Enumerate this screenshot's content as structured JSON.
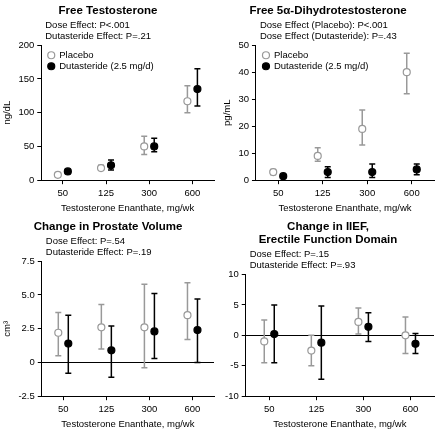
{
  "chart_data": [
    {
      "type": "scatter",
      "title": "Free Testosterone",
      "annotations": [
        "Dose Effect: P<.001",
        "Dutasteride Effect: P=.21"
      ],
      "categories": [
        "50",
        "125",
        "300",
        "600"
      ],
      "x_label": "Testosterone Enanthate, mg/wk",
      "y_label": "ng/dL",
      "ylim": [
        0,
        200
      ],
      "yticks": [
        0,
        50,
        100,
        150,
        200
      ],
      "grid": false,
      "legend": "upper left",
      "series": [
        {
          "name": "Placebo",
          "color": "#999999",
          "marker": "open",
          "values": [
            8,
            18,
            50,
            117
          ],
          "error_low": [
            5,
            15,
            38,
            100
          ],
          "error_high": [
            10,
            22,
            65,
            140
          ]
        },
        {
          "name": "Dutasteride (2.5 mg/d)",
          "color": "#000000",
          "marker": "filled",
          "values": [
            13,
            22,
            50,
            135
          ],
          "error_low": [
            10,
            15,
            42,
            110
          ],
          "error_high": [
            16,
            30,
            62,
            165
          ]
        }
      ]
    },
    {
      "type": "scatter",
      "title": "Free 5α-Dihydrotestosterone",
      "annotations": [
        "Dose Effect (Placebo): P<.001",
        "Dose Effect (Dutasteride): P=.43"
      ],
      "categories": [
        "50",
        "125",
        "300",
        "600"
      ],
      "x_label": "Testosterone Enanthate, mg/wk",
      "y_label": "pg/mL",
      "ylim": [
        0,
        50
      ],
      "yticks": [
        0,
        10,
        20,
        30,
        40,
        50
      ],
      "grid": false,
      "legend": "upper left",
      "series": [
        {
          "name": "Placebo",
          "color": "#999999",
          "marker": "open",
          "values": [
            3,
            9,
            19,
            40
          ],
          "error_low": [
            2,
            7,
            13,
            32
          ],
          "error_high": [
            4,
            12,
            26,
            47
          ]
        },
        {
          "name": "Dutasteride (2.5 mg/d)",
          "color": "#000000",
          "marker": "filled",
          "values": [
            1.5,
            3,
            3,
            4
          ],
          "error_low": [
            1,
            1,
            1,
            2
          ],
          "error_high": [
            2,
            5,
            6,
            6
          ]
        }
      ]
    },
    {
      "type": "scatter",
      "title": "Change in Prostate Volume",
      "annotations": [
        "Dose Effect: P=.54",
        "Dutasteride Effect: P=.19"
      ],
      "categories": [
        "50",
        "125",
        "300",
        "600"
      ],
      "x_label": "Testosterone Enanthate, mg/wk",
      "y_label": "cm³",
      "ylim": [
        -2.5,
        7.5
      ],
      "yticks": [
        -2.5,
        0,
        2.5,
        {
          "value": 5,
          "label": "5.0"
        },
        7.5
      ],
      "grid": false,
      "series": [
        {
          "name": "Placebo",
          "color": "#999999",
          "marker": "open",
          "values": [
            2.2,
            2.6,
            2.6,
            3.5
          ],
          "error_low": [
            0.5,
            1,
            -0.4,
            1.7
          ],
          "error_high": [
            3.7,
            4.3,
            5.8,
            5.9
          ]
        },
        {
          "name": "Dutasteride (2.5 mg/d)",
          "color": "#000000",
          "marker": "filled",
          "values": [
            1.4,
            0.9,
            2.3,
            2.4
          ],
          "error_low": [
            -0.8,
            -1.1,
            0.3,
            0
          ],
          "error_high": [
            3.5,
            2.7,
            5.1,
            4.7
          ]
        }
      ]
    },
    {
      "type": "scatter",
      "title": "Change in IIEF,\nErectile Function Domain",
      "annotations": [
        "Dose Effect: P=.15",
        "Dutasteride Effect: P=.93"
      ],
      "categories": [
        "50",
        "125",
        "300",
        "600"
      ],
      "x_label": "Testosterone Enanthate, mg/wk",
      "ylim": [
        -10,
        10
      ],
      "yticks": [
        -10,
        -5,
        0,
        5,
        10
      ],
      "grid": false,
      "series": [
        {
          "name": "Placebo",
          "color": "#999999",
          "marker": "open",
          "values": [
            -1,
            -2.5,
            2.2,
            0
          ],
          "error_low": [
            -4.5,
            -5,
            0.2,
            -3
          ],
          "error_high": [
            2.5,
            0,
            4.5,
            3
          ]
        },
        {
          "name": "Dutasteride (2.5 mg/d)",
          "color": "#000000",
          "marker": "filled",
          "values": [
            0.2,
            -1.2,
            1.4,
            -1.4
          ],
          "error_low": [
            -4.5,
            -7.2,
            -1,
            -3
          ],
          "error_high": [
            5,
            4.8,
            3.7,
            0.3
          ]
        }
      ]
    }
  ]
}
